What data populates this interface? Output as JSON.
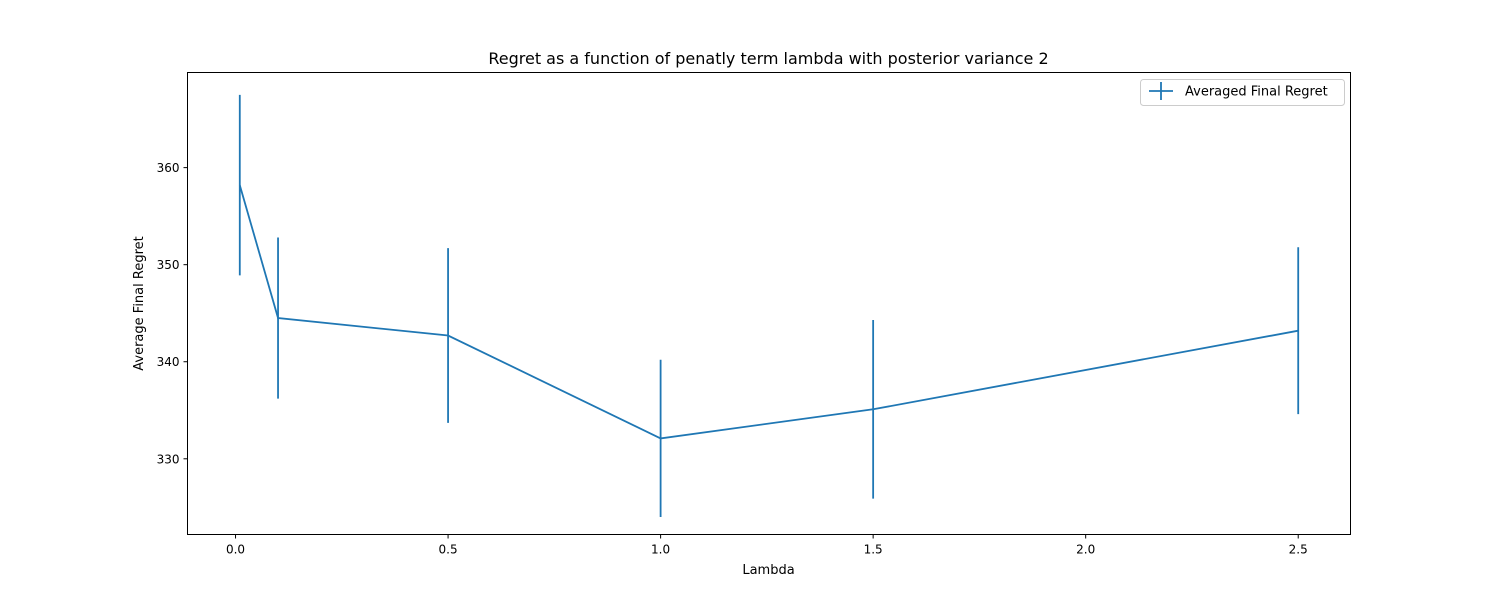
{
  "chart_data": {
    "type": "line",
    "title": "Regret as a function of penatly term lambda with posterior variance 2",
    "xlabel": "Lambda",
    "ylabel": "Average Final Regret",
    "xlim": [
      -0.113,
      2.623
    ],
    "ylim": [
      322.2,
      369.8
    ],
    "xticks": [
      0.0,
      0.5,
      1.0,
      1.5,
      2.0,
      2.5
    ],
    "xtick_labels": [
      "0.0",
      "0.5",
      "1.0",
      "1.5",
      "2.0",
      "2.5"
    ],
    "yticks": [
      330,
      340,
      350,
      360
    ],
    "ytick_labels": [
      "330",
      "340",
      "350",
      "360"
    ],
    "grid": false,
    "legend_position": "top-right",
    "series": [
      {
        "name": "Averaged Final Regret",
        "color": "#1f77b4",
        "error_bars": true,
        "x": [
          0.01,
          0.1,
          0.5,
          1.0,
          1.5,
          2.5
        ],
        "y": [
          358.2,
          344.5,
          342.7,
          332.1,
          335.1,
          343.2
        ],
        "yerr": [
          9.3,
          8.3,
          9.0,
          8.1,
          9.2,
          8.6
        ]
      }
    ]
  }
}
